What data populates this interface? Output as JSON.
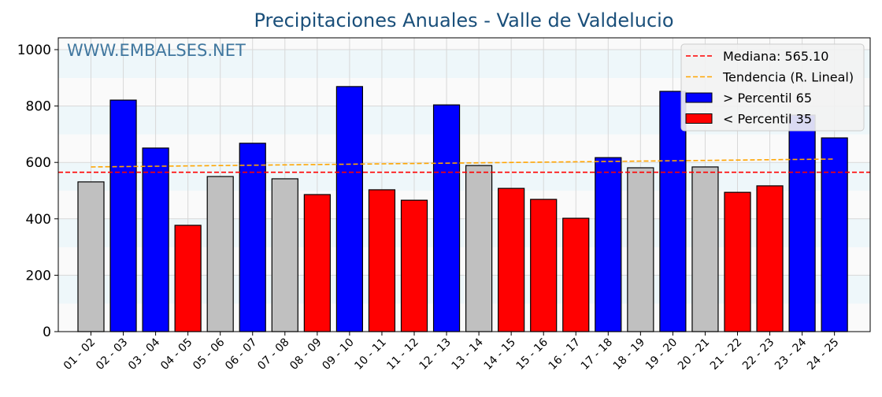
{
  "chart_data": {
    "type": "bar",
    "title": "Precipitaciones Anuales - Valle de Valdelucio",
    "watermark": "WWW.EMBALSES.NET",
    "xlabel": "",
    "ylabel": "",
    "ylim": [
      0,
      1040
    ],
    "yticks": [
      0,
      200,
      400,
      600,
      800,
      1000
    ],
    "grid": true,
    "legend_position": "top-right",
    "categories": [
      "01 - 02",
      "02 - 03",
      "03 - 04",
      "04 - 05",
      "05 - 06",
      "06 - 07",
      "07 - 08",
      "08 - 09",
      "09 - 10",
      "10 - 11",
      "11 - 12",
      "12 - 13",
      "13 - 14",
      "14 - 15",
      "15 - 16",
      "16 - 17",
      "17 - 18",
      "18 - 19",
      "19 - 20",
      "20 - 21",
      "21 - 22",
      "22 - 23",
      "23 - 24",
      "24 - 25"
    ],
    "values": [
      531,
      821,
      651,
      377,
      550,
      668,
      542,
      486,
      869,
      503,
      466,
      804,
      589,
      508,
      469,
      402,
      617,
      581,
      852,
      584,
      494,
      517,
      768,
      687
    ],
    "classes": [
      "mid",
      "high",
      "high",
      "low",
      "mid",
      "high",
      "mid",
      "low",
      "high",
      "low",
      "low",
      "high",
      "mid",
      "low",
      "low",
      "low",
      "high",
      "mid",
      "high",
      "mid",
      "low",
      "low",
      "high",
      "high"
    ],
    "median": 565.1,
    "trend": {
      "start": 584,
      "end": 612
    },
    "legend": [
      {
        "label": "Mediana: 565.10",
        "kind": "line",
        "color": "#ff0000"
      },
      {
        "label": "Tendencia (R. Lineal)",
        "kind": "line",
        "color": "#ffa500"
      },
      {
        "label": " > Percentil 65",
        "kind": "box",
        "color": "#0000ff"
      },
      {
        "label": " < Percentil 35",
        "kind": "box",
        "color": "#ff0000"
      }
    ],
    "colors": {
      "high": "#0000ff",
      "low": "#ff0000",
      "mid": "#c0c0c0",
      "title": "#1a4f7a",
      "watermark": "#2e6a96"
    }
  }
}
